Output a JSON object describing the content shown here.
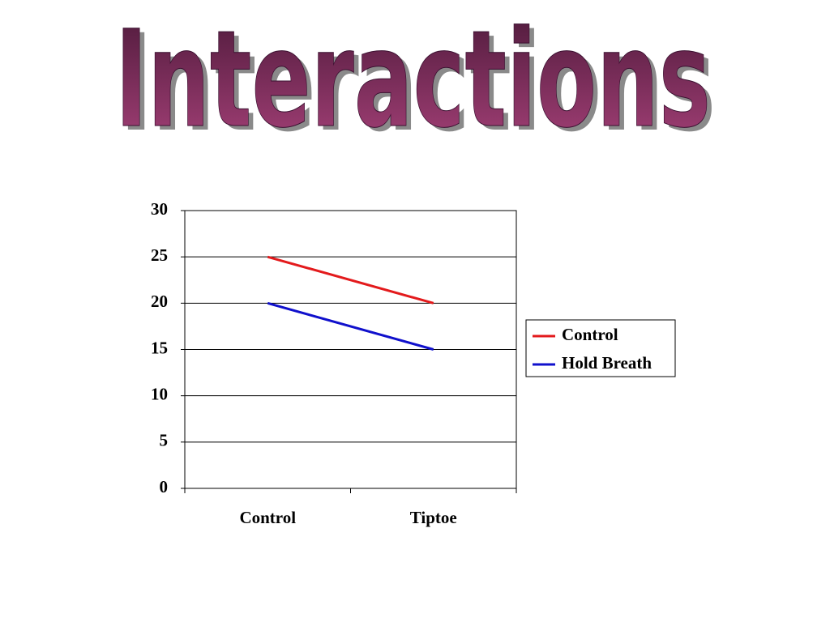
{
  "chart_data": {
    "type": "line",
    "title": "Interactions",
    "categories": [
      "Control",
      "Tiptoe"
    ],
    "series": [
      {
        "name": "Control",
        "color": "#e31a1c",
        "values": [
          25,
          20
        ]
      },
      {
        "name": "Hold Breath",
        "color": "#1010cc",
        "values": [
          20,
          15
        ]
      }
    ],
    "ylim": [
      0,
      30
    ],
    "yticks": [
      0,
      5,
      10,
      15,
      20,
      25,
      30
    ],
    "grid": true,
    "legend": "right"
  }
}
